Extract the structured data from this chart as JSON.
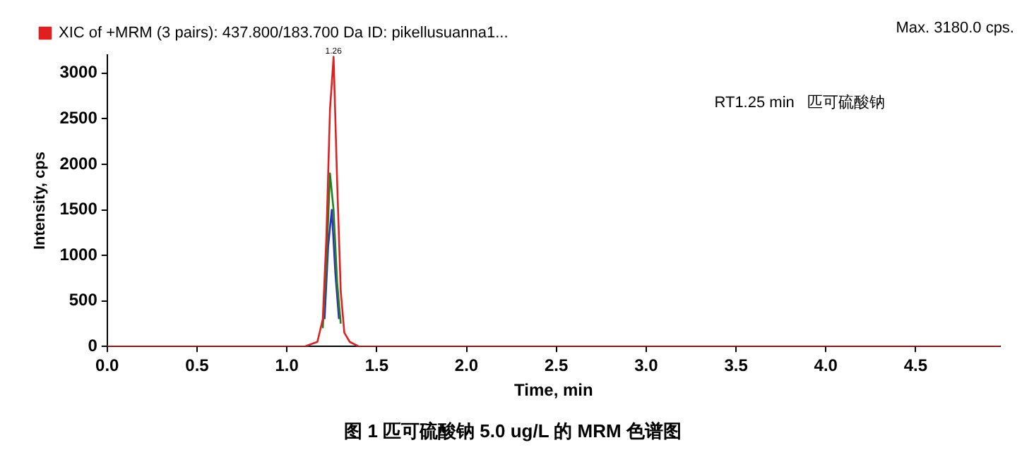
{
  "chart_data": {
    "type": "line",
    "title": "图 1 匹可硫酸钠 5.0 ug/L 的 MRM 色谱图",
    "xlabel": "Time, min",
    "ylabel": "Intensity, cps",
    "annotations": [
      "Max. 3180.0 cps.",
      "RT1.25 min   匹可硫酸钠",
      {
        "text": "1.26",
        "x": 1.26,
        "y": 3180
      }
    ],
    "series": [
      {
        "name": "XIC of +MRM (3 pairs): 437.800/183.700 Da ID: pikellusuanna1...",
        "color": "#e02020",
        "x": [
          0,
          0.3,
          0.6,
          0.9,
          1.1,
          1.17,
          1.2,
          1.22,
          1.24,
          1.26,
          1.28,
          1.3,
          1.32,
          1.35,
          1.4,
          1.6,
          2.0,
          2.5,
          3.0,
          3.5,
          4.0,
          4.5,
          4.97
        ],
        "values": [
          0,
          0,
          0,
          0,
          0,
          50,
          300,
          1200,
          2600,
          3180,
          1800,
          600,
          150,
          50,
          0,
          0,
          0,
          0,
          0,
          0,
          0,
          0,
          0
        ]
      },
      {
        "color": "#208020",
        "x": [
          1.2,
          1.22,
          1.24,
          1.26,
          1.28,
          1.3
        ],
        "values": [
          200,
          900,
          1900,
          1500,
          700,
          250
        ]
      },
      {
        "color": "#3030c0",
        "x": [
          1.21,
          1.23,
          1.25,
          1.27,
          1.29
        ],
        "values": [
          300,
          1100,
          1500,
          800,
          300
        ]
      }
    ],
    "xlim": [
      0,
      4.97
    ],
    "ylim": [
      0,
      3200
    ],
    "xticks": [
      {
        "value": 0,
        "label": "0.0"
      },
      {
        "value": 0.5,
        "label": "0.5"
      },
      {
        "value": 1,
        "label": "1.0"
      },
      {
        "value": 1.5,
        "label": "1.5"
      },
      {
        "value": 2,
        "label": "2.0"
      },
      {
        "value": 2.5,
        "label": "2.5"
      },
      {
        "value": 3,
        "label": "3.0"
      },
      {
        "value": 3.5,
        "label": "3.5"
      },
      {
        "value": 4,
        "label": "4.0"
      },
      {
        "value": 4.5,
        "label": "4.5"
      }
    ],
    "yticks": [
      0,
      500,
      1000,
      1500,
      2000,
      2500,
      3000
    ],
    "grid": false,
    "legend": "top left",
    "marker": "none",
    "line_style": "solid"
  }
}
